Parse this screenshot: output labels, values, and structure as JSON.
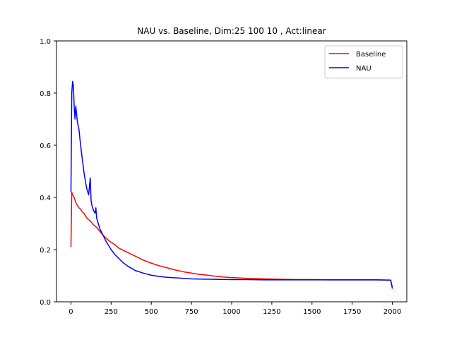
{
  "chart_data": {
    "type": "line",
    "title": "NAU vs. Baseline, Dim:25 100 10 , Act:linear",
    "xlabel": "",
    "ylabel": "",
    "xlim": [
      -90,
      2090
    ],
    "ylim": [
      0.0,
      1.0
    ],
    "xticks": [
      0,
      250,
      500,
      750,
      1000,
      1250,
      1500,
      1750,
      2000
    ],
    "xtick_labels": [
      "0",
      "250",
      "500",
      "750",
      "1000",
      "1250",
      "1500",
      "1750",
      "2000"
    ],
    "yticks": [
      0.0,
      0.2,
      0.4,
      0.6,
      0.8,
      1.0
    ],
    "ytick_labels": [
      "0.0",
      "0.2",
      "0.4",
      "0.6",
      "0.8",
      "1.0"
    ],
    "grid": false,
    "legend_position": "top-right",
    "series": [
      {
        "name": "Baseline",
        "color": "#ff0000",
        "x": [
          0,
          5,
          10,
          20,
          30,
          40,
          50,
          60,
          70,
          80,
          100,
          120,
          140,
          160,
          180,
          200,
          225,
          250,
          275,
          300,
          350,
          400,
          450,
          500,
          550,
          600,
          650,
          700,
          750,
          800,
          850,
          900,
          950,
          1000,
          1100,
          1200,
          1300,
          1400,
          1500,
          1600,
          1700,
          1800,
          1900,
          1990,
          2000
        ],
        "y": [
          0.21,
          0.42,
          0.41,
          0.4,
          0.38,
          0.37,
          0.36,
          0.355,
          0.345,
          0.34,
          0.32,
          0.31,
          0.295,
          0.285,
          0.27,
          0.255,
          0.24,
          0.228,
          0.218,
          0.205,
          0.19,
          0.175,
          0.16,
          0.148,
          0.138,
          0.13,
          0.122,
          0.115,
          0.11,
          0.105,
          0.102,
          0.098,
          0.095,
          0.093,
          0.09,
          0.088,
          0.086,
          0.085,
          0.085,
          0.084,
          0.084,
          0.084,
          0.084,
          0.083,
          0.05
        ]
      },
      {
        "name": "NAU",
        "color": "#0000ff",
        "x": [
          0,
          5,
          10,
          15,
          20,
          25,
          30,
          35,
          40,
          50,
          60,
          70,
          80,
          90,
          100,
          110,
          120,
          125,
          130,
          140,
          150,
          155,
          160,
          170,
          180,
          200,
          220,
          250,
          275,
          300,
          325,
          350,
          400,
          450,
          500,
          550,
          600,
          650,
          700,
          750,
          800,
          900,
          1000,
          1100,
          1200,
          1300,
          1400,
          1500,
          1600,
          1700,
          1800,
          1900,
          1990,
          2000
        ],
        "y": [
          0.42,
          0.8,
          0.845,
          0.83,
          0.75,
          0.7,
          0.75,
          0.72,
          0.69,
          0.66,
          0.6,
          0.55,
          0.5,
          0.46,
          0.43,
          0.41,
          0.475,
          0.39,
          0.37,
          0.35,
          0.34,
          0.36,
          0.32,
          0.3,
          0.28,
          0.255,
          0.23,
          0.2,
          0.18,
          0.165,
          0.15,
          0.138,
          0.12,
          0.11,
          0.102,
          0.097,
          0.094,
          0.092,
          0.09,
          0.088,
          0.087,
          0.086,
          0.085,
          0.085,
          0.084,
          0.084,
          0.084,
          0.084,
          0.084,
          0.084,
          0.084,
          0.084,
          0.083,
          0.055
        ]
      }
    ]
  }
}
